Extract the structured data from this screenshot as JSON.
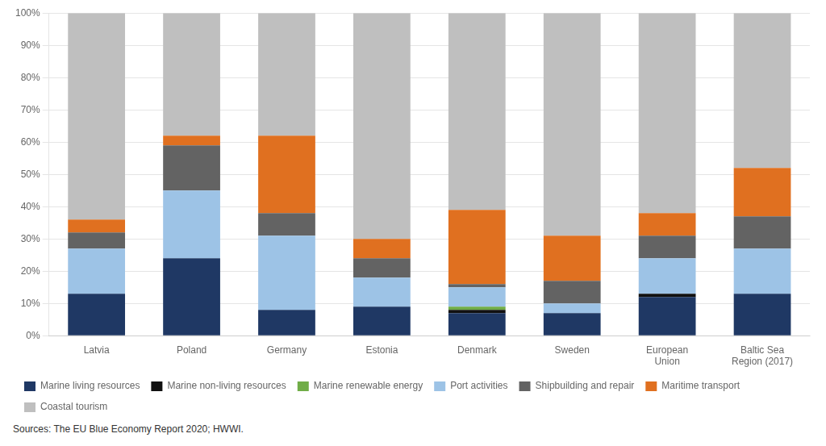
{
  "chart_data": {
    "type": "bar",
    "stacked": true,
    "categories": [
      "Latvia",
      "Poland",
      "Germany",
      "Estonia",
      "Denmark",
      "Sweden",
      "European\nUnion",
      "Baltic Sea\nRegion (2017)"
    ],
    "series": [
      {
        "name": "Marine living resources",
        "color": "#1f3864",
        "values": [
          13,
          24,
          8,
          9,
          7,
          7,
          12,
          13
        ]
      },
      {
        "name": "Marine non-living resources",
        "color": "#111111",
        "values": [
          0,
          0,
          0,
          0,
          1,
          0,
          1,
          0
        ]
      },
      {
        "name": "Marine renewable energy",
        "color": "#70ad47",
        "values": [
          0,
          0,
          0,
          0,
          1,
          0,
          0,
          0
        ]
      },
      {
        "name": "Port activities",
        "color": "#9dc3e6",
        "values": [
          14,
          21,
          23,
          9,
          6,
          3,
          11,
          14
        ]
      },
      {
        "name": "Shipbuilding and repair",
        "color": "#636363",
        "values": [
          5,
          14,
          7,
          6,
          1,
          7,
          7,
          10
        ]
      },
      {
        "name": "Maritime transport",
        "color": "#e07020",
        "values": [
          4,
          3,
          24,
          6,
          23,
          14,
          7,
          15
        ]
      },
      {
        "name": "Coastal tourism",
        "color": "#bfbfbf",
        "values": [
          64,
          38,
          38,
          70,
          61,
          69,
          62,
          48
        ]
      }
    ],
    "ylim": [
      0,
      100
    ],
    "yticks": [
      {
        "value": 0,
        "label": "0%"
      },
      {
        "value": 10,
        "label": "10%"
      },
      {
        "value": 20,
        "label": "20%"
      },
      {
        "value": 30,
        "label": "30%"
      },
      {
        "value": 40,
        "label": "40%"
      },
      {
        "value": 50,
        "label": "50%"
      },
      {
        "value": 60,
        "label": "60%"
      },
      {
        "value": 70,
        "label": "70%"
      },
      {
        "value": 80,
        "label": "80%"
      },
      {
        "value": 90,
        "label": "90%"
      },
      {
        "value": 100,
        "label": "100%"
      }
    ],
    "grid": true,
    "legend": "bottom",
    "annotations": [
      "Sources: The EU Blue Economy Report 2020; HWWI."
    ]
  }
}
